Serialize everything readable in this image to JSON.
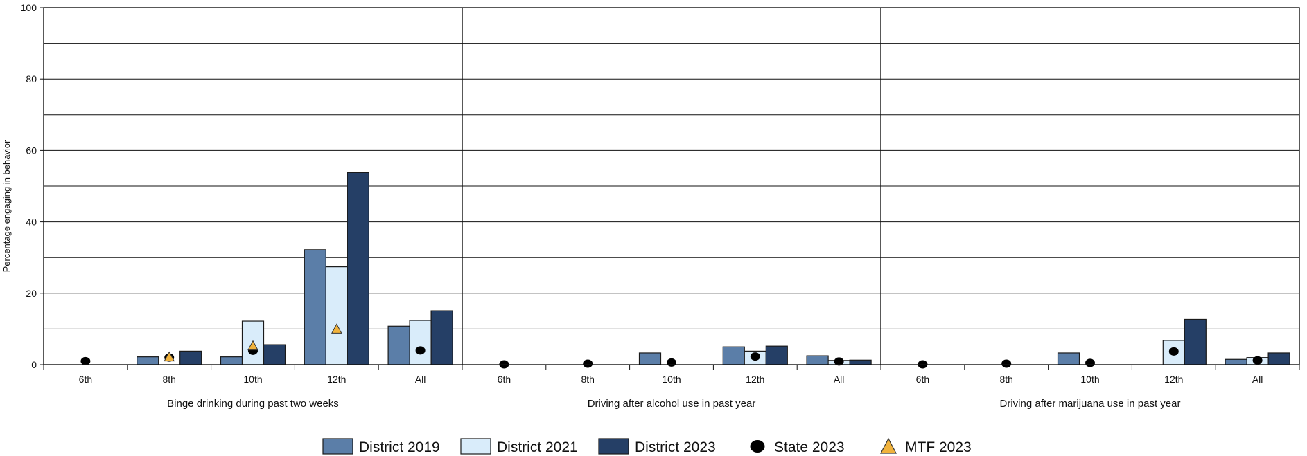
{
  "chart_data": {
    "type": "bar",
    "ylabel": "Percentage engaging in behavior",
    "ylim": [
      0,
      100
    ],
    "yticks": [
      0,
      20,
      40,
      60,
      80,
      100
    ],
    "grid": true,
    "legend_position": "bottom",
    "categories": [
      "6th",
      "8th",
      "10th",
      "12th",
      "All"
    ],
    "groups": [
      "Binge drinking during past two weeks",
      "Driving after alcohol use in past year",
      "Driving after marijuana use in past year"
    ],
    "series": [
      {
        "name": "District 2019",
        "color": "#5b7ea8",
        "values": [
          [
            null,
            2.2,
            2.2,
            32.2,
            10.8
          ],
          [
            null,
            null,
            3.3,
            5.0,
            2.5
          ],
          [
            null,
            null,
            3.3,
            null,
            1.5
          ]
        ]
      },
      {
        "name": "District 2021",
        "color": "#d9ecfa",
        "values": [
          [
            null,
            null,
            12.2,
            27.4,
            12.4
          ],
          [
            null,
            null,
            null,
            3.8,
            1.2
          ],
          [
            null,
            null,
            null,
            6.8,
            2.0
          ]
        ]
      },
      {
        "name": "District 2023",
        "color": "#253f66",
        "values": [
          [
            null,
            3.8,
            5.6,
            53.8,
            15.1
          ],
          [
            null,
            null,
            null,
            5.2,
            1.3
          ],
          [
            null,
            null,
            null,
            12.7,
            3.3
          ]
        ]
      }
    ],
    "markers": [
      {
        "name": "State 2023",
        "shape": "circle",
        "color": "#000000",
        "values": [
          [
            1.0,
            2.0,
            3.9,
            null,
            4.0
          ],
          [
            0.1,
            0.3,
            0.6,
            2.3,
            0.9
          ],
          [
            0.1,
            0.3,
            0.5,
            3.7,
            1.2
          ]
        ]
      },
      {
        "name": "MTF 2023",
        "shape": "triangle",
        "color": "#f0b23c",
        "values": [
          [
            null,
            2.2,
            5.3,
            10.0,
            null
          ],
          [
            null,
            null,
            null,
            null,
            null
          ],
          [
            null,
            null,
            null,
            null,
            null
          ]
        ]
      }
    ]
  }
}
